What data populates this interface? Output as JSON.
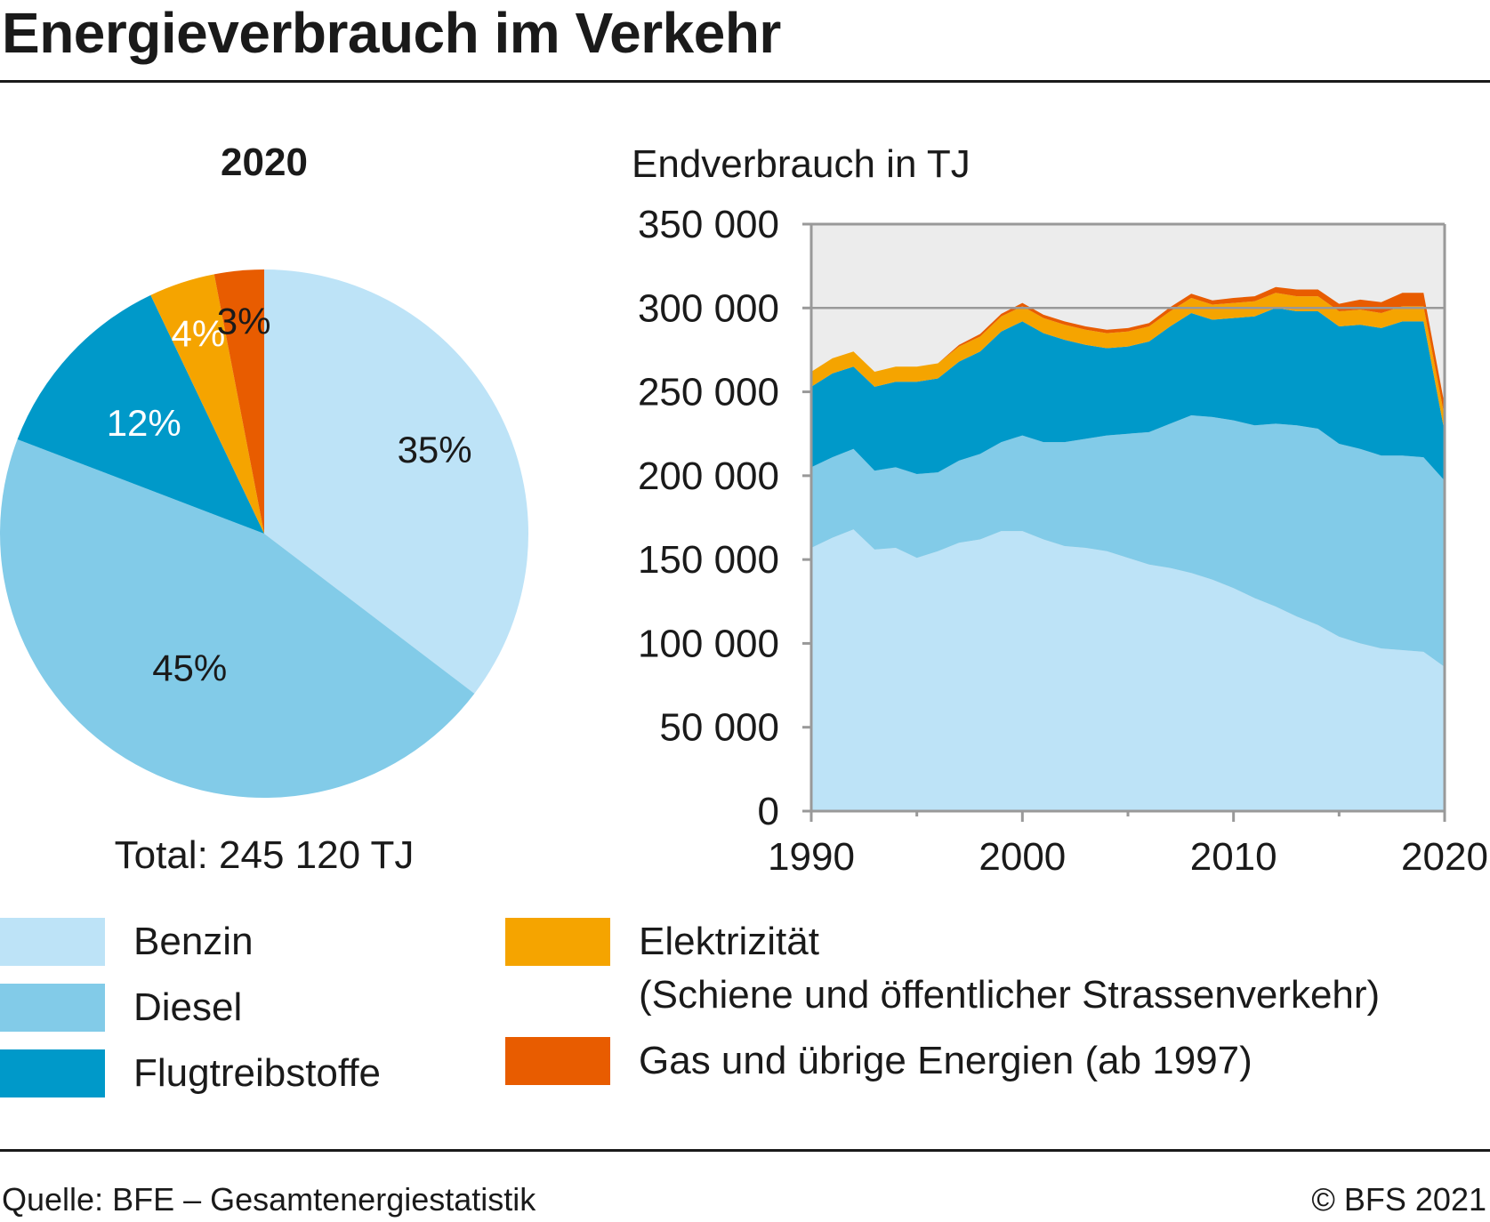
{
  "header": {
    "title": "Energieverbrauch im Verkehr"
  },
  "colors": {
    "benzin": "#bde3f7",
    "diesel": "#82cbe8",
    "flug": "#0099c9",
    "elektrizitaet": "#f5a400",
    "gas": "#e85c00",
    "plot_bg": "#ececec",
    "axis": "#999999"
  },
  "legend": {
    "items": [
      {
        "key": "benzin",
        "label": "Benzin"
      },
      {
        "key": "diesel",
        "label": "Diesel"
      },
      {
        "key": "flug",
        "label": "Flugtreibstoffe"
      },
      {
        "key": "elektrizitaet",
        "label": "Elektrizität",
        "label2": "(Schiene und öffentlicher Strassenverkehr)"
      },
      {
        "key": "gas",
        "label": "Gas und übrige Energien (ab 1997)"
      }
    ]
  },
  "footer": {
    "source": "Quelle: BFE – Gesamtenergiestatistik",
    "copyright": "© BFS 2021"
  },
  "chart_data": [
    {
      "type": "pie",
      "title": "2020",
      "subtitle": "Total: 245 120 TJ",
      "slices": [
        {
          "key": "benzin",
          "label": "Benzin",
          "value": 35,
          "display": "35%"
        },
        {
          "key": "diesel",
          "label": "Diesel",
          "value": 45,
          "display": "45%"
        },
        {
          "key": "flug",
          "label": "Flugtreibstoffe",
          "value": 12,
          "display": "12%"
        },
        {
          "key": "elektrizitaet",
          "label": "Elektrizität",
          "value": 4,
          "display": "4%"
        },
        {
          "key": "gas",
          "label": "Gas und übrige Energien",
          "value": 3,
          "display": "3%"
        }
      ]
    },
    {
      "type": "area",
      "stacked": true,
      "ylabel": "Endverbrauch in TJ",
      "ylim": [
        0,
        350000
      ],
      "yticks": [
        0,
        50000,
        100000,
        150000,
        200000,
        250000,
        300000,
        350000
      ],
      "ytick_labels": [
        "0",
        "50 000",
        "100 000",
        "150 000",
        "200 000",
        "250 000",
        "300 000",
        "350 000"
      ],
      "xlim": [
        1990,
        2020
      ],
      "xticks": [
        1990,
        2000,
        2010,
        2020
      ],
      "xtick_labels": [
        "1990",
        "2000",
        "2010",
        "2020"
      ],
      "gridlines_y": [
        300000
      ],
      "x": [
        1990,
        1991,
        1992,
        1993,
        1994,
        1995,
        1996,
        1997,
        1998,
        1999,
        2000,
        2001,
        2002,
        2003,
        2004,
        2005,
        2006,
        2007,
        2008,
        2009,
        2010,
        2011,
        2012,
        2013,
        2014,
        2015,
        2016,
        2017,
        2018,
        2019,
        2020
      ],
      "series": [
        {
          "key": "benzin",
          "name": "Benzin",
          "values": [
            157000,
            163000,
            168000,
            156000,
            157000,
            151000,
            155000,
            160000,
            162000,
            167000,
            167000,
            162000,
            158000,
            157000,
            155000,
            151000,
            147000,
            145000,
            142000,
            138000,
            133000,
            127000,
            122000,
            116000,
            111000,
            104000,
            100000,
            97000,
            96000,
            95000,
            86000
          ]
        },
        {
          "key": "diesel",
          "name": "Diesel",
          "values": [
            48000,
            48000,
            48000,
            47000,
            48000,
            50000,
            47000,
            49000,
            51000,
            53000,
            57000,
            58000,
            62000,
            65000,
            69000,
            74000,
            79000,
            86000,
            94000,
            97000,
            100000,
            103000,
            109000,
            114000,
            117000,
            115000,
            116000,
            115000,
            116000,
            116000,
            111000
          ]
        },
        {
          "key": "flug",
          "name": "Flugtreibstoffe",
          "values": [
            48000,
            50000,
            49000,
            50000,
            51000,
            55000,
            56000,
            59000,
            61000,
            66000,
            68000,
            65000,
            61000,
            56000,
            52000,
            52000,
            54000,
            58000,
            61000,
            58000,
            61000,
            65000,
            69000,
            68000,
            70000,
            70000,
            74000,
            76000,
            80000,
            81000,
            29000
          ]
        },
        {
          "key": "elektrizitaet",
          "name": "Elektrizität",
          "values": [
            9000,
            9000,
            9000,
            9000,
            9000,
            9000,
            9000,
            9000,
            9000,
            9000,
            9000,
            9000,
            9000,
            9000,
            9000,
            9000,
            9000,
            9000,
            9000,
            9000,
            9000,
            9000,
            9000,
            9000,
            9000,
            9000,
            9000,
            9000,
            9000,
            9000,
            9000
          ]
        },
        {
          "key": "gas",
          "name": "Gas und übrige Energien (ab 1997)",
          "values": [
            0,
            0,
            0,
            0,
            0,
            0,
            0,
            1000,
            1500,
            1500,
            2000,
            2000,
            2000,
            2000,
            2000,
            2000,
            2000,
            2500,
            2500,
            2500,
            3000,
            3000,
            3500,
            4000,
            4000,
            4500,
            6000,
            6500,
            8000,
            8000,
            7000
          ]
        }
      ]
    }
  ]
}
